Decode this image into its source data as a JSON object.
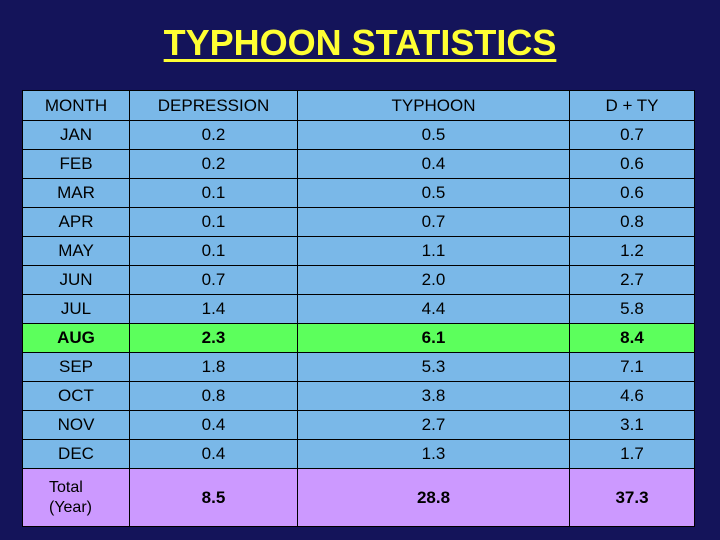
{
  "title": "TYPHOON STATISTICS",
  "headers": [
    "MONTH",
    "DEPRESSION",
    "TYPHOON",
    "D + TY"
  ],
  "rows": [
    {
      "month": "JAN",
      "depression": "0.2",
      "typhoon": "0.5",
      "dty": "0.7"
    },
    {
      "month": "FEB",
      "depression": "0.2",
      "typhoon": "0.4",
      "dty": "0.6"
    },
    {
      "month": "MAR",
      "depression": "0.1",
      "typhoon": "0.5",
      "dty": "0.6"
    },
    {
      "month": "APR",
      "depression": "0.1",
      "typhoon": "0.7",
      "dty": "0.8"
    },
    {
      "month": "MAY",
      "depression": "0.1",
      "typhoon": "1.1",
      "dty": "1.2"
    },
    {
      "month": "JUN",
      "depression": "0.7",
      "typhoon": "2.0",
      "dty": "2.7"
    },
    {
      "month": "JUL",
      "depression": "1.4",
      "typhoon": "4.4",
      "dty": "5.8"
    },
    {
      "month": "AUG",
      "depression": "2.3",
      "typhoon": "6.1",
      "dty": "8.4"
    },
    {
      "month": "SEP",
      "depression": "1.8",
      "typhoon": "5.3",
      "dty": "7.1"
    },
    {
      "month": "OCT",
      "depression": "0.8",
      "typhoon": "3.8",
      "dty": "4.6"
    },
    {
      "month": "NOV",
      "depression": "0.4",
      "typhoon": "2.7",
      "dty": "3.1"
    },
    {
      "month": "DEC",
      "depression": "0.4",
      "typhoon": "1.3",
      "dty": "1.7"
    }
  ],
  "total": {
    "label_line1": "Total",
    "label_line2": "(Year)",
    "depression": "8.5",
    "typhoon": "28.8",
    "dty": "37.3"
  },
  "colors": {
    "background": "#14145a",
    "title": "#ffff33",
    "row": "#7ab8e8",
    "highlight_row": "#5cff5c",
    "total_row": "#cc99ff"
  },
  "highlight_month": "AUG"
}
